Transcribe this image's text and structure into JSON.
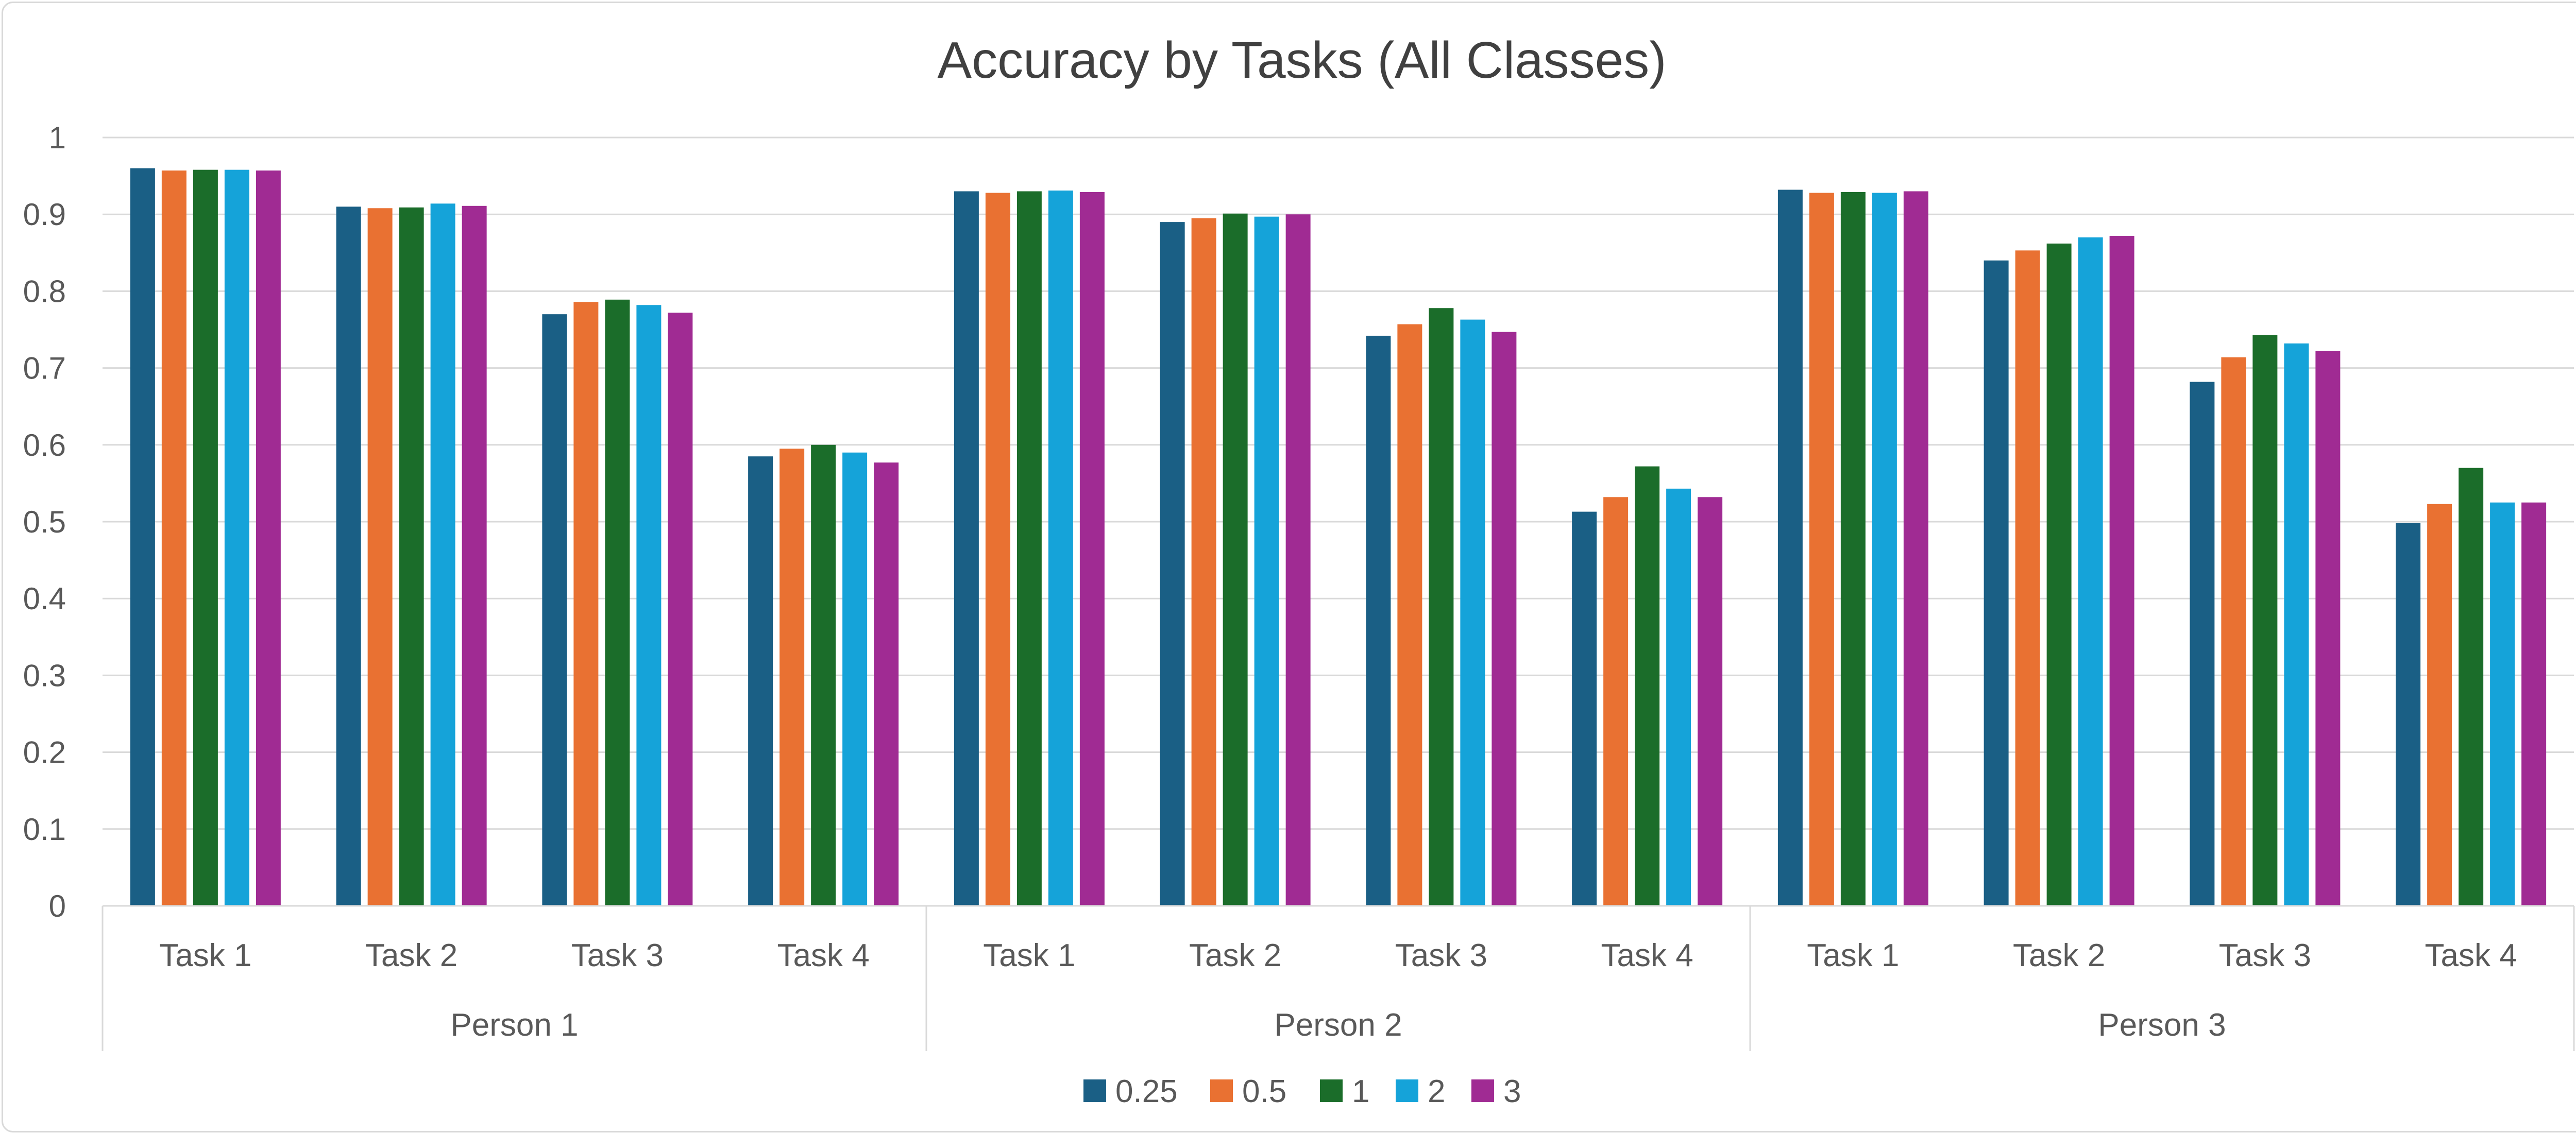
{
  "chart_data": {
    "type": "bar",
    "title": "Accuracy by Tasks (All Classes)",
    "xlabel": "",
    "ylabel": "",
    "ylim": [
      0,
      1
    ],
    "yticks": [
      "0",
      "0.1",
      "0.2",
      "0.3",
      "0.4",
      "0.5",
      "0.6",
      "0.7",
      "0.8",
      "0.9",
      "1"
    ],
    "ytick_values": [
      0,
      0.1,
      0.2,
      0.3,
      0.4,
      0.5,
      0.6,
      0.7,
      0.8,
      0.9,
      1
    ],
    "groups": [
      "Person 1",
      "Person 2",
      "Person 3"
    ],
    "categories": [
      "Task 1",
      "Task 2",
      "Task 3",
      "Task 4",
      "Task 1",
      "Task 2",
      "Task 3",
      "Task 4",
      "Task 1",
      "Task 2",
      "Task 3",
      "Task 4"
    ],
    "grid": true,
    "legend_position": "bottom",
    "series": [
      {
        "name": "0.25",
        "color": "#1a5f85",
        "values": [
          0.96,
          0.91,
          0.77,
          0.585,
          0.93,
          0.89,
          0.742,
          0.513,
          0.932,
          0.84,
          0.682,
          0.498
        ]
      },
      {
        "name": "0.5",
        "color": "#e97132",
        "values": [
          0.957,
          0.908,
          0.786,
          0.595,
          0.928,
          0.895,
          0.757,
          0.532,
          0.928,
          0.853,
          0.714,
          0.523
        ]
      },
      {
        "name": "1",
        "color": "#1b6d2a",
        "values": [
          0.958,
          0.909,
          0.789,
          0.6,
          0.93,
          0.901,
          0.778,
          0.572,
          0.929,
          0.862,
          0.743,
          0.57
        ]
      },
      {
        "name": "2",
        "color": "#15a3d9",
        "values": [
          0.958,
          0.914,
          0.782,
          0.59,
          0.931,
          0.897,
          0.763,
          0.543,
          0.928,
          0.87,
          0.732,
          0.525
        ]
      },
      {
        "name": "3",
        "color": "#a02b93",
        "values": [
          0.957,
          0.911,
          0.772,
          0.577,
          0.929,
          0.9,
          0.747,
          0.532,
          0.93,
          0.872,
          0.722,
          0.525
        ]
      }
    ]
  }
}
